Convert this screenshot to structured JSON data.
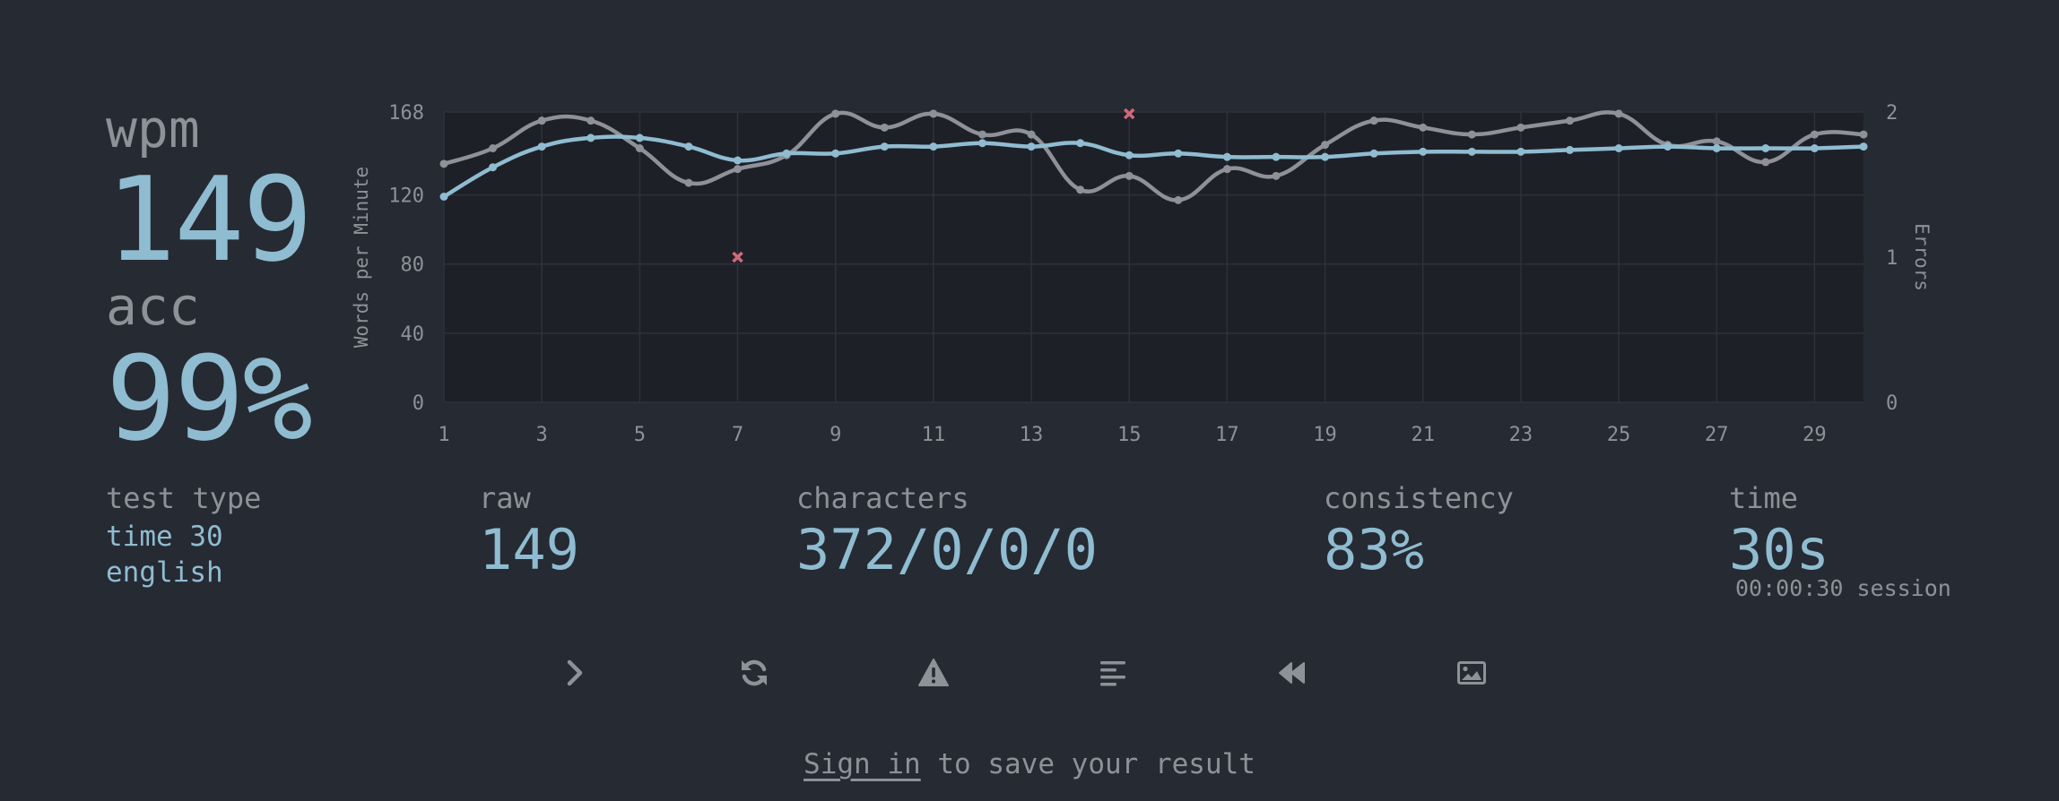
{
  "wpm": {
    "label": "wpm",
    "value": "149"
  },
  "acc": {
    "label": "acc",
    "value": "99%"
  },
  "test_type": {
    "label": "test type",
    "line1": "time 30",
    "line2": "english"
  },
  "raw": {
    "label": "raw",
    "value": "149"
  },
  "characters": {
    "label": "characters",
    "value": "372/0/0/0"
  },
  "consistency": {
    "label": "consistency",
    "value": "83%"
  },
  "time": {
    "label": "time",
    "value": "30s",
    "session": "00:00:30 session"
  },
  "buttons": [
    {
      "name": "next-test-button",
      "icon": "chevron-right-icon"
    },
    {
      "name": "restart-test-button",
      "icon": "refresh-icon"
    },
    {
      "name": "report-button",
      "icon": "warning-icon"
    },
    {
      "name": "word-history-button",
      "icon": "align-left-icon"
    },
    {
      "name": "watch-replay-button",
      "icon": "rewind-icon"
    },
    {
      "name": "save-screenshot-button",
      "icon": "image-icon"
    }
  ],
  "signin": {
    "link": "Sign in",
    "rest": " to save your result"
  },
  "colors": {
    "background": "#262a33",
    "accent": "#8fbcd0",
    "raw_line": "#8f9198",
    "error": "#d06a77",
    "plot_bg": "#1e2028"
  },
  "chart_data": {
    "type": "line",
    "ylabel": "Words per Minute",
    "y2label": "Errors",
    "x": [
      1,
      2,
      3,
      4,
      5,
      6,
      7,
      8,
      9,
      10,
      11,
      12,
      13,
      14,
      15,
      16,
      17,
      18,
      19,
      20,
      21,
      22,
      23,
      24,
      25,
      26,
      27,
      28,
      29,
      30
    ],
    "xticks": [
      "1",
      "3",
      "5",
      "7",
      "9",
      "11",
      "13",
      "15",
      "17",
      "19",
      "21",
      "23",
      "25",
      "27",
      "29"
    ],
    "yticks": [
      "0",
      "40",
      "80",
      "120",
      "168"
    ],
    "y2ticks": [
      "0",
      "1",
      "2"
    ],
    "ylim": [
      0,
      168
    ],
    "y2lim": [
      0,
      2
    ],
    "grid": true,
    "series": [
      {
        "name": "raw",
        "color": "#8f9198",
        "values": [
          138,
          147,
          163,
          163,
          147,
          127,
          135,
          143,
          167,
          159,
          167,
          155,
          155,
          123,
          131,
          117,
          135,
          131,
          149,
          163,
          159,
          155,
          159,
          163,
          167,
          149,
          151,
          139,
          155,
          155
        ]
      },
      {
        "name": "wpm",
        "color": "#8fbcd0",
        "values": [
          119,
          136,
          148,
          153,
          153,
          148,
          140,
          144,
          144,
          148,
          148,
          150,
          148,
          150,
          143,
          144,
          142,
          142,
          142,
          144,
          145,
          145,
          145,
          146,
          147,
          148,
          147,
          147,
          147,
          148
        ]
      },
      {
        "name": "errors",
        "color": "#d06a77",
        "points": [
          [
            7,
            1
          ],
          [
            15,
            2
          ]
        ]
      }
    ]
  }
}
